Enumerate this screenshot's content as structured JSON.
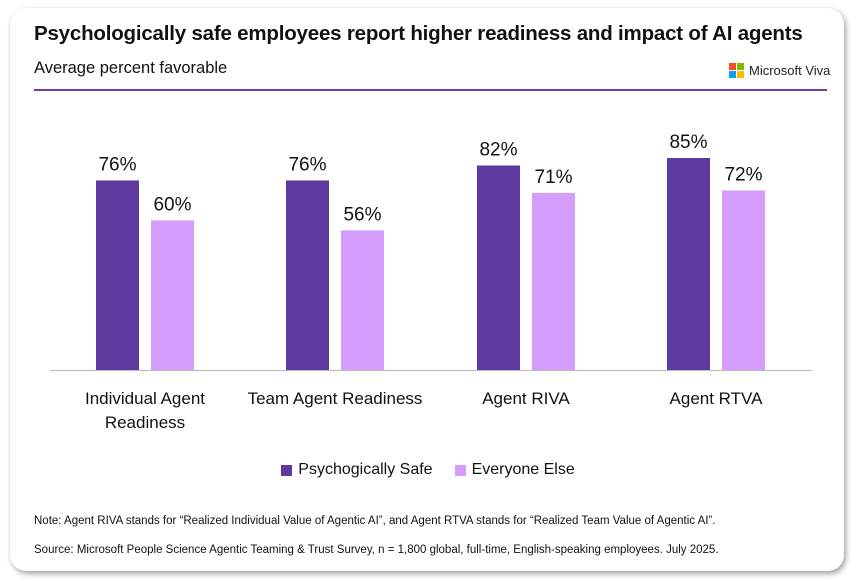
{
  "header": {
    "title": "Psychologically safe employees report higher readiness and impact of AI agents",
    "subtitle": "Average percent favorable",
    "brand": "Microsoft Viva",
    "logo_colors": [
      "#f25022",
      "#7fba00",
      "#00a4ef",
      "#ffb900"
    ],
    "accent_color": "#6a3fad"
  },
  "chart_data": {
    "type": "bar",
    "title": "Psychologically safe employees report higher readiness and impact of AI agents",
    "subtitle": "Average percent favorable",
    "xlabel": "",
    "ylabel": "",
    "ylim": [
      0,
      100
    ],
    "grid": false,
    "legend_position": "bottom",
    "categories": [
      "Individual Agent Readiness",
      "Team Agent Readiness",
      "Agent RIVA",
      "Agent RTVA"
    ],
    "category_lines": [
      [
        "Individual Agent",
        "Readiness"
      ],
      [
        "Team Agent Readiness"
      ],
      [
        "Agent RIVA"
      ],
      [
        "Agent RTVA"
      ]
    ],
    "series": [
      {
        "name": "Psychogically Safe",
        "color": "#5e3a9e",
        "values": [
          76,
          76,
          82,
          85
        ]
      },
      {
        "name": "Everyone Else",
        "color": "#d49cfb",
        "values": [
          60,
          56,
          71,
          72
        ]
      }
    ],
    "value_format": "{v}%"
  },
  "legend": {
    "items": [
      {
        "label": "Psychogically Safe",
        "color": "#5e3a9e"
      },
      {
        "label": "Everyone Else",
        "color": "#d49cfb"
      }
    ]
  },
  "footer": {
    "note": "Note: Agent RIVA stands for “Realized Individual Value of Agentic AI”, and Agent RTVA stands for “Realized Team Value of Agentic AI”.",
    "source": "Source: Microsoft People Science Agentic Teaming & Trust Survey, n = 1,800 global, full-time, English-speaking employees. July 2025."
  }
}
